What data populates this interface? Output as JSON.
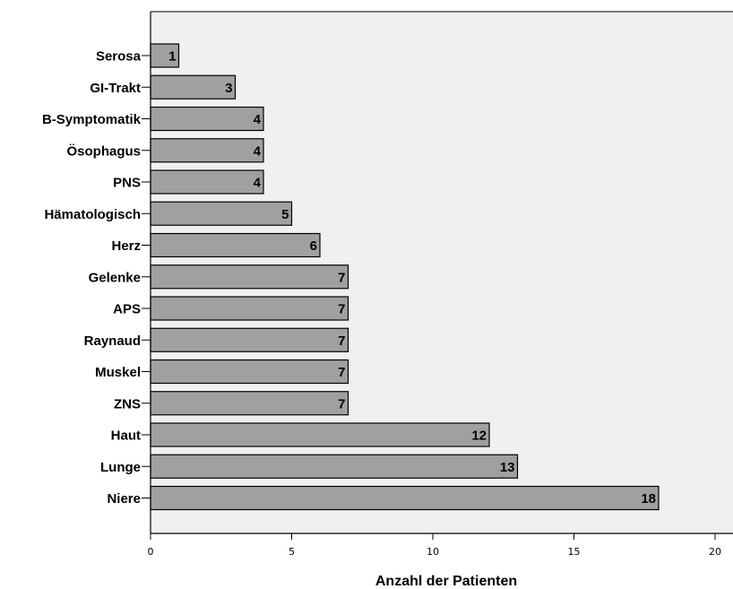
{
  "chart_data": {
    "type": "bar",
    "orientation": "horizontal",
    "categories": [
      "Serosa",
      "GI-Trakt",
      "B-Symptomatik",
      "Ösophagus",
      "PNS",
      "Hämatologisch",
      "Herz",
      "Gelenke",
      "APS",
      "Raynaud",
      "Muskel",
      "ZNS",
      "Haut",
      "Lunge",
      "Niere"
    ],
    "values": [
      1,
      3,
      4,
      4,
      4,
      5,
      6,
      7,
      7,
      7,
      7,
      7,
      12,
      13,
      18
    ],
    "value_labels": [
      "1",
      "3",
      "4",
      "4",
      "4",
      "5",
      "6",
      "7",
      "7",
      "7",
      "7",
      "7",
      "12",
      "13",
      "18"
    ],
    "xlabel": "Anzahl der Patienten",
    "ylabel": "",
    "xlim": [
      0,
      20.7
    ],
    "xticks": [
      0,
      5,
      10,
      15,
      20
    ],
    "xtick_labels": [
      "0",
      "5",
      "10",
      "15",
      "20"
    ],
    "grid": false,
    "legend": "none",
    "colors": {
      "plot_background": "#f0f0f0",
      "bar_fill": "#a0a0a0",
      "bar_stroke": "#000000"
    }
  }
}
